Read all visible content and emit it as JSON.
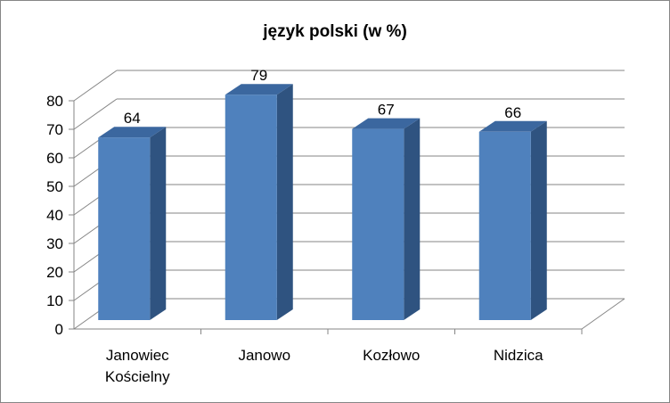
{
  "chart_data": {
    "type": "bar",
    "title": "język polski (w %)",
    "categories": [
      "Janowiec Kościelny",
      "Janowo",
      "Kozłowo",
      "Nidzica"
    ],
    "category_lines": [
      [
        "Janowiec",
        "Kościelny"
      ],
      [
        "Janowo"
      ],
      [
        "Kozłowo"
      ],
      [
        "Nidzica"
      ]
    ],
    "values": [
      64,
      79,
      67,
      66
    ],
    "data_labels": [
      "64",
      "79",
      "67",
      "66"
    ],
    "ylim": [
      0,
      80
    ],
    "y_ticks": [
      "0",
      "10",
      "20",
      "30",
      "40",
      "50",
      "60",
      "70",
      "80"
    ],
    "grid": true,
    "legend": "none",
    "style": "3d-column",
    "colors": {
      "bar_front": "#4F81BD",
      "bar_side": "#2F5380",
      "bar_top": "#3B679F",
      "grid": "#868686"
    }
  }
}
